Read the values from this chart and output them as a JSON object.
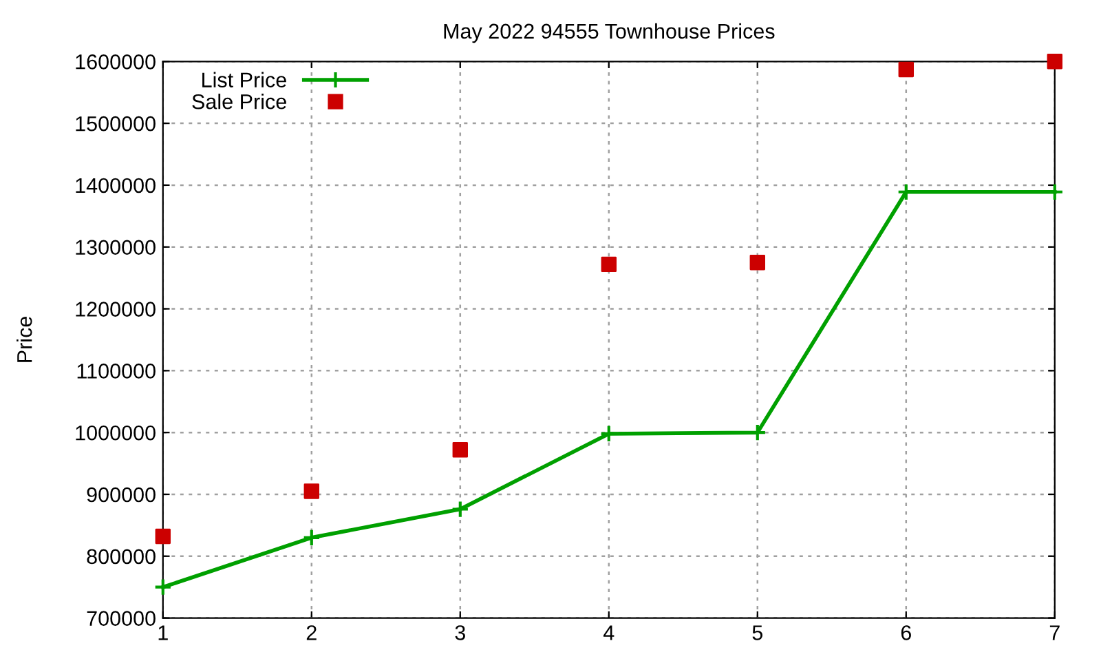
{
  "chart_data": {
    "type": "line",
    "title": "May 2022 94555 Townhouse Prices",
    "ylabel": "Price",
    "x": [
      1,
      2,
      3,
      4,
      5,
      6,
      7
    ],
    "series": [
      {
        "name": "List Price",
        "color": "#00a000",
        "marker": "cross",
        "values": [
          750000,
          830000,
          876000,
          998000,
          1000000,
          1389000,
          1389000
        ]
      },
      {
        "name": "Sale Price",
        "type": "scatter",
        "color": "#cc0000",
        "marker": "square",
        "values": [
          832000,
          905000,
          972000,
          1272000,
          1275000,
          1587000,
          1600000
        ]
      }
    ],
    "xlim": [
      1,
      7
    ],
    "xticks": [
      1,
      2,
      3,
      4,
      5,
      6,
      7
    ],
    "ylim": [
      700000,
      1600000
    ],
    "yticks": [
      700000,
      800000,
      900000,
      1000000,
      1100000,
      1200000,
      1300000,
      1400000,
      1500000,
      1600000
    ],
    "grid": true,
    "legend": "top left"
  }
}
